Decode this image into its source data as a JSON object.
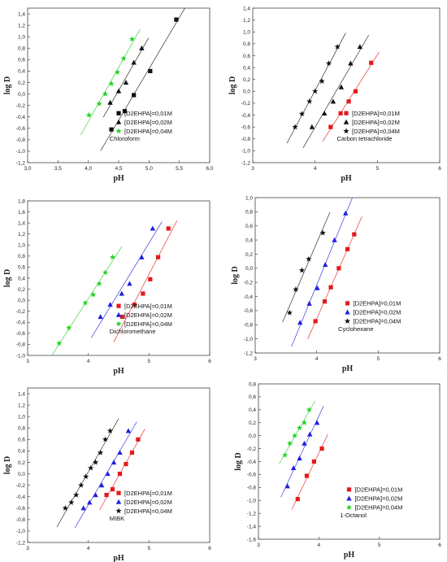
{
  "colors": {
    "red": "#e41a1c",
    "black": "#111111",
    "blue": "#1f1fe0",
    "green": "#27d127"
  },
  "chart_data": [
    {
      "type": "scatter",
      "xlabel": "pH",
      "ylabel": "log D",
      "xlim": [
        3.0,
        6.0
      ],
      "ylim": [
        -1.2,
        1.5
      ],
      "xticks": [
        3.0,
        3.5,
        4.0,
        4.5,
        5.0,
        5.5,
        6.0
      ],
      "xtick_labels": [
        "3,0",
        "3,5",
        "4,0",
        "4,5",
        "5,0",
        "5,5",
        "6,0"
      ],
      "yticks": [
        -1.2,
        -1.0,
        -0.8,
        -0.6,
        -0.4,
        -0.2,
        0.0,
        0.2,
        0.4,
        0.6,
        0.8,
        1.0,
        1.2,
        1.4
      ],
      "ytick_labels": [
        "-1,2",
        "-1,0",
        "-0,8",
        "-0,6",
        "-0,4",
        "-0,2",
        "0,0",
        "0,2",
        "0,4",
        "0,6",
        "0,8",
        "1,0",
        "1,2",
        "1,4"
      ],
      "annotation": "Chloroform",
      "legend_position": "bottom-right",
      "series": [
        {
          "name": "[D2EHPA]=0,01M",
          "marker": "square",
          "color": "#111111",
          "x": [
            4.38,
            4.6,
            4.75,
            5.02,
            5.45
          ],
          "y": [
            -0.62,
            -0.3,
            -0.02,
            0.4,
            1.3
          ]
        },
        {
          "name": "[D2EHPA]=0,02M",
          "marker": "triangle",
          "color": "#111111",
          "x": [
            4.36,
            4.5,
            4.62,
            4.75,
            4.88
          ],
          "y": [
            -0.15,
            0.05,
            0.2,
            0.55,
            0.8
          ]
        },
        {
          "name": "[D2EHPA]=0,04M",
          "marker": "star",
          "color": "#27d127",
          "x": [
            4.01,
            4.18,
            4.28,
            4.38,
            4.48,
            4.58,
            4.72
          ],
          "y": [
            -0.37,
            -0.17,
            0.0,
            0.18,
            0.38,
            0.62,
            0.96
          ]
        }
      ]
    },
    {
      "type": "scatter",
      "xlabel": "pH",
      "ylabel": "log D",
      "xlim": [
        3,
        6
      ],
      "ylim": [
        -1.2,
        1.4
      ],
      "xticks": [
        3,
        4,
        5,
        6
      ],
      "xtick_labels": [
        "3",
        "4",
        "5",
        "6"
      ],
      "yticks": [
        -1.2,
        -1.0,
        -0.8,
        -0.6,
        -0.4,
        -0.2,
        0.0,
        0.2,
        0.4,
        0.6,
        0.8,
        1.0,
        1.2,
        1.4
      ],
      "ytick_labels": [
        "-1,2",
        "-1,0",
        "-0,8",
        "-0,6",
        "-0,4",
        "-0,2",
        "0,0",
        "0,2",
        "0,4",
        "0,6",
        "0,8",
        "1,0",
        "1,2",
        "1,4"
      ],
      "annotation": "Carbon tetrachloride",
      "legend_position": "bottom-right",
      "series": [
        {
          "name": "[D2EHPA]=0,01M",
          "marker": "square",
          "color": "#e41a1c",
          "x": [
            4.25,
            4.41,
            4.54,
            4.65,
            4.9
          ],
          "y": [
            -0.6,
            -0.37,
            -0.17,
            0.0,
            0.48
          ]
        },
        {
          "name": "[D2EHPA]=0,02M",
          "marker": "triangle",
          "color": "#111111",
          "x": [
            3.95,
            4.15,
            4.29,
            4.42,
            4.57,
            4.72
          ],
          "y": [
            -0.6,
            -0.37,
            -0.17,
            0.07,
            0.47,
            0.75
          ]
        },
        {
          "name": "[D2EHPA]=0,04M",
          "marker": "star",
          "color": "#111111",
          "x": [
            3.68,
            3.79,
            3.91,
            4.0,
            4.11,
            4.22,
            4.36
          ],
          "y": [
            -0.6,
            -0.38,
            -0.17,
            0.0,
            0.17,
            0.47,
            0.75
          ]
        }
      ]
    },
    {
      "type": "scatter",
      "xlabel": "pH",
      "ylabel": "log D",
      "xlim": [
        3,
        6
      ],
      "ylim": [
        -1.0,
        1.8
      ],
      "xticks": [
        3,
        4,
        5,
        6
      ],
      "xtick_labels": [
        "3",
        "4",
        "5",
        "6"
      ],
      "yticks": [
        -1.0,
        -0.8,
        -0.6,
        -0.4,
        -0.2,
        0.0,
        0.2,
        0.4,
        0.6,
        0.8,
        1.0,
        1.2,
        1.4,
        1.6,
        1.8
      ],
      "ytick_labels": [
        "-1,0",
        "-0,8",
        "-0,6",
        "-0,4",
        "-0,2",
        "0,0",
        "0,2",
        "0,4",
        "0,6",
        "0,8",
        "1,0",
        "1,2",
        "1,4",
        "1,6",
        "1,8"
      ],
      "annotation": "Dichloromethane",
      "legend_position": "bottom-right",
      "series": [
        {
          "name": "[D2EHPA]=0,01M",
          "marker": "square",
          "color": "#e41a1c",
          "x": [
            4.56,
            4.76,
            4.9,
            5.02,
            5.15,
            5.32
          ],
          "y": [
            -0.3,
            -0.08,
            0.12,
            0.38,
            0.78,
            1.3
          ]
        },
        {
          "name": "[D2EHPA]=0,02M",
          "marker": "triangle",
          "color": "#1f1fe0",
          "x": [
            4.2,
            4.36,
            4.55,
            4.68,
            4.88,
            5.06
          ],
          "y": [
            -0.3,
            -0.08,
            0.12,
            0.3,
            0.78,
            1.3
          ]
        },
        {
          "name": "[D2EHPA]=0,04M",
          "marker": "star",
          "color": "#27d127",
          "x": [
            3.52,
            3.68,
            3.95,
            4.08,
            4.18,
            4.28,
            4.4
          ],
          "y": [
            -0.78,
            -0.5,
            -0.05,
            0.1,
            0.3,
            0.5,
            0.78
          ]
        }
      ]
    },
    {
      "type": "scatter",
      "xlabel": "pH",
      "ylabel": "log D",
      "xlim": [
        3,
        6
      ],
      "ylim": [
        -1.2,
        1.0
      ],
      "xticks": [
        3,
        4,
        5,
        6
      ],
      "xtick_labels": [
        "3",
        "4",
        "5",
        "6"
      ],
      "yticks": [
        -1.2,
        -1.0,
        -0.8,
        -0.6,
        -0.4,
        -0.2,
        0.0,
        0.2,
        0.4,
        0.6,
        0.8,
        1.0
      ],
      "ytick_labels": [
        "-1,2",
        "-1,0",
        "-0,8",
        "-0,6",
        "-0,4",
        "-0,2",
        "0,0",
        "0,2",
        "0,4",
        "0,6",
        "0,8",
        "1,0"
      ],
      "annotation": "Cyclohexane",
      "legend_position": "bottom-right",
      "series": [
        {
          "name": "[D2EHPA]=0,01M",
          "marker": "square",
          "color": "#e41a1c",
          "x": [
            3.98,
            4.13,
            4.23,
            4.36,
            4.5,
            4.61
          ],
          "y": [
            -0.75,
            -0.47,
            -0.27,
            0.0,
            0.27,
            0.48
          ]
        },
        {
          "name": "[D2EHPA]=0,02M",
          "marker": "triangle",
          "color": "#1f1fe0",
          "x": [
            3.73,
            3.88,
            4.01,
            4.14,
            4.29,
            4.47
          ],
          "y": [
            -0.77,
            -0.5,
            -0.28,
            0.05,
            0.4,
            0.78
          ]
        },
        {
          "name": "[D2EHPA]=0,04M",
          "marker": "star",
          "color": "#111111",
          "x": [
            3.56,
            3.66,
            3.76,
            3.87,
            4.1
          ],
          "y": [
            -0.63,
            -0.3,
            -0.03,
            0.13,
            0.5
          ]
        }
      ]
    },
    {
      "type": "scatter",
      "xlabel": "pH",
      "ylabel": "log D",
      "xlim": [
        3,
        6
      ],
      "ylim": [
        -1.2,
        1.5
      ],
      "xticks": [
        3,
        4,
        5,
        6
      ],
      "xtick_labels": [
        "3",
        "4",
        "5",
        "6"
      ],
      "yticks": [
        -1.2,
        -1.0,
        -0.8,
        -0.6,
        -0.4,
        -0.2,
        0.0,
        0.2,
        0.4,
        0.6,
        0.8,
        1.0,
        1.2,
        1.4
      ],
      "ytick_labels": [
        "-1,2",
        "-1,0",
        "-0,8",
        "-0,6",
        "-0,4",
        "-0,2",
        "0,0",
        "0,2",
        "0,4",
        "0,6",
        "0,8",
        "1,0",
        "1,2",
        "1,4"
      ],
      "annotation": "MIBK",
      "legend_position": "bottom-right",
      "series": [
        {
          "name": "[D2EHPA]=0,01M",
          "marker": "square",
          "color": "#e41a1c",
          "x": [
            4.3,
            4.4,
            4.52,
            4.62,
            4.72,
            4.82
          ],
          "y": [
            -0.37,
            -0.27,
            0.0,
            0.17,
            0.37,
            0.6
          ]
        },
        {
          "name": "[D2EHPA]=0,02M",
          "marker": "triangle",
          "color": "#1f1fe0",
          "x": [
            3.92,
            4.02,
            4.12,
            4.22,
            4.32,
            4.42,
            4.52,
            4.66
          ],
          "y": [
            -0.6,
            -0.5,
            -0.37,
            -0.2,
            0.0,
            0.2,
            0.37,
            0.75
          ]
        },
        {
          "name": "[D2EHPA]=0,04M",
          "marker": "star",
          "color": "#111111",
          "x": [
            3.62,
            3.72,
            3.8,
            3.88,
            3.96,
            4.04,
            4.12,
            4.2,
            4.28,
            4.36
          ],
          "y": [
            -0.6,
            -0.5,
            -0.37,
            -0.2,
            -0.05,
            0.1,
            0.2,
            0.37,
            0.6,
            0.75
          ]
        }
      ]
    },
    {
      "type": "scatter",
      "xlabel": "pH",
      "ylabel": "log D",
      "xlim": [
        3,
        6
      ],
      "ylim": [
        -1.6,
        0.8
      ],
      "xticks": [
        3,
        4,
        5,
        6
      ],
      "xtick_labels": [
        "3",
        "4",
        "5",
        "6"
      ],
      "yticks": [
        -1.6,
        -1.4,
        -1.2,
        -1.0,
        -0.8,
        -0.6,
        -0.4,
        -0.2,
        0.0,
        0.2,
        0.4,
        0.6,
        0.8
      ],
      "ytick_labels": [
        "-1,6",
        "-1,4",
        "-1,2",
        "-1,0",
        "-0,8",
        "-0,6",
        "-0,4",
        "-0,2",
        "0,0",
        "0,2",
        "0,4",
        "0,6",
        "0,8"
      ],
      "annotation": "1-Octanol",
      "legend_position": "bottom-right",
      "series": [
        {
          "name": "[D2EHPA]=0,01M",
          "marker": "square",
          "color": "#e41a1c",
          "x": [
            3.65,
            3.8,
            3.92,
            4.05
          ],
          "y": [
            -0.98,
            -0.62,
            -0.4,
            -0.2
          ]
        },
        {
          "name": "[D2EHPA]=0,02M",
          "marker": "triangle",
          "color": "#1f1fe0",
          "x": [
            3.48,
            3.58,
            3.68,
            3.76,
            3.85,
            3.97
          ],
          "y": [
            -0.78,
            -0.5,
            -0.35,
            -0.12,
            0.02,
            0.2
          ]
        },
        {
          "name": "[D2EHPA]=0,04M",
          "marker": "star",
          "color": "#27d127",
          "x": [
            3.44,
            3.52,
            3.6,
            3.68,
            3.76,
            3.84
          ],
          "y": [
            -0.3,
            -0.12,
            0.0,
            0.12,
            0.2,
            0.4
          ]
        }
      ]
    }
  ]
}
